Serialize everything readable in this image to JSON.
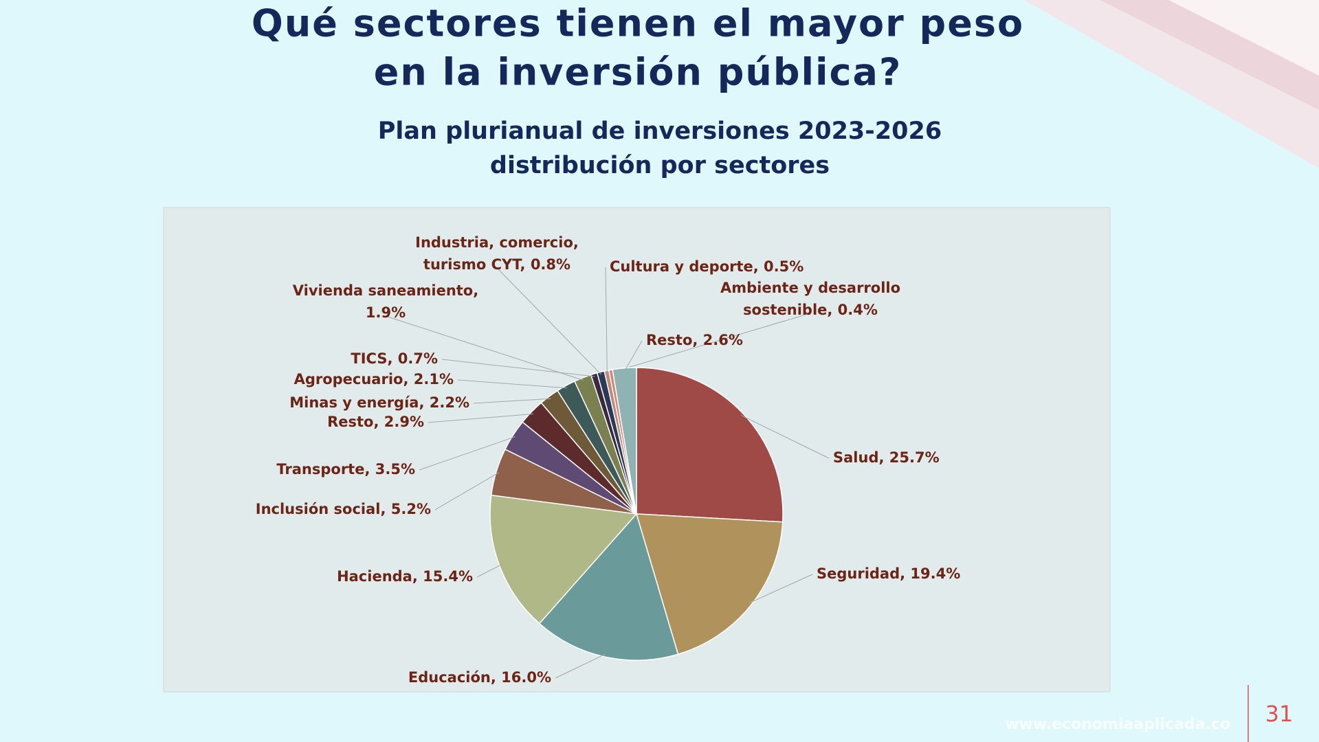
{
  "slide": {
    "heading": [
      "Qué sectores tienen el mayor peso",
      "en la inversión pública?"
    ],
    "footer": "www.economiaaplicada.co",
    "page_number": "31"
  },
  "chart_data": {
    "type": "pie",
    "title": "Plan plurianual de inversiones 2023-2026",
    "subtitle": "distribución por sectores",
    "values": [
      25.7,
      19.4,
      16.0,
      15.4,
      5.2,
      3.5,
      2.9,
      2.2,
      2.1,
      1.9,
      0.7,
      0.8,
      0.5,
      0.4,
      2.6
    ],
    "value_labels": [
      "Salud, 25.7%",
      "Seguridad, 19.4%",
      "Educación, 16.0%",
      "Hacienda, 15.4%",
      "Inclusión social, 5.2%",
      "Transporte, 3.5%",
      "Resto, 2.9%",
      "Minas y energía, 2.2%",
      "Agropecuario, 2.1%",
      "Vivienda saneamiento, 1.9%",
      "TICS, 0.7%",
      "Industria, comercio, turismo CYT, 0.8%",
      "Cultura y deporte, 0.5%",
      "Ambiente y desarrollo sostenible, 0.4%",
      "Resto, 2.6%"
    ],
    "colors": [
      "#a04a48",
      "#b0935c",
      "#6a9a99",
      "#b1b887",
      "#8f604a",
      "#5e4a73",
      "#5e2b2c",
      "#6e5a38",
      "#3d5a58",
      "#7a8050",
      "#3a2a40",
      "#2c3a5a",
      "#c08a7a",
      "#d08878",
      "#8fb2b3"
    ]
  }
}
